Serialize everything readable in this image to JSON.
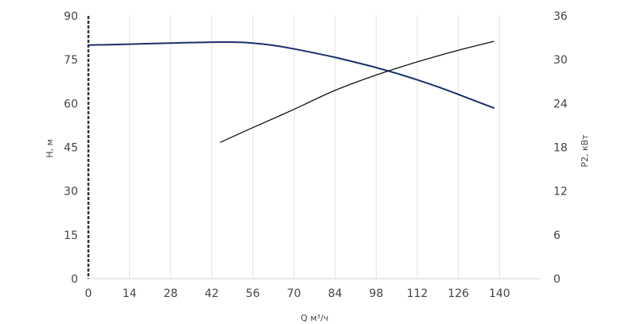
{
  "chart_data": {
    "type": "line",
    "xlabel": "Q м³/ч",
    "ylabel_left": "H, м",
    "ylabel_right": "P2, кВт",
    "x_ticks": [
      "0",
      "14",
      "28",
      "42",
      "56",
      "70",
      "84",
      "98",
      "112",
      "126",
      "140"
    ],
    "y_left_ticks": [
      "0",
      "15",
      "30",
      "45",
      "60",
      "75",
      "90"
    ],
    "y_right_ticks": [
      "0",
      "6",
      "12",
      "18",
      "24",
      "30",
      "36"
    ],
    "xlim": [
      0,
      154
    ],
    "ylim_left": [
      0,
      90
    ],
    "ylim_right": [
      0,
      36
    ],
    "grid": "vertical",
    "series": [
      {
        "axis": "left",
        "color": "#1a2e6b",
        "x": [
          0,
          14,
          28,
          42,
          50,
          56,
          63,
          70,
          77,
          84,
          91,
          98,
          105,
          112,
          119,
          126,
          133,
          138
        ],
        "values": [
          80,
          80.3,
          80.7,
          81,
          81,
          80.7,
          79.9,
          78.7,
          77.3,
          75.8,
          74.1,
          72.3,
          70.3,
          68.1,
          65.7,
          63.1,
          60.4,
          58.5
        ]
      },
      {
        "axis": "right",
        "color": "#111111",
        "x": [
          45,
          56,
          70,
          84,
          98,
          112,
          126,
          138
        ],
        "values": [
          18.7,
          20.7,
          23.2,
          25.8,
          27.9,
          29.7,
          31.3,
          32.5
        ]
      }
    ]
  }
}
